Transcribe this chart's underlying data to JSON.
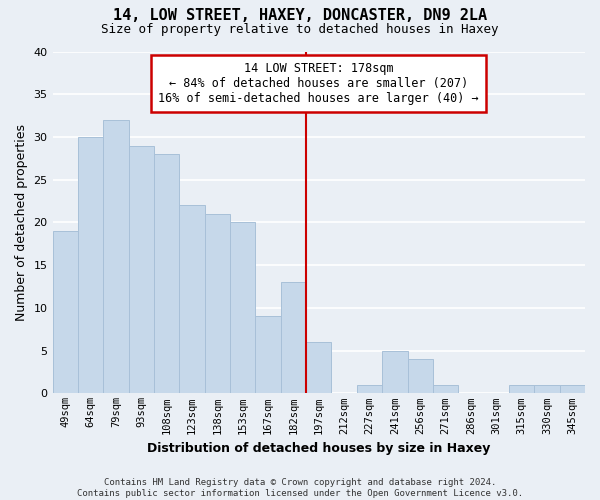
{
  "title": "14, LOW STREET, HAXEY, DONCASTER, DN9 2LA",
  "subtitle": "Size of property relative to detached houses in Haxey",
  "xlabel": "Distribution of detached houses by size in Haxey",
  "ylabel": "Number of detached properties",
  "footer_line1": "Contains HM Land Registry data © Crown copyright and database right 2024.",
  "footer_line2": "Contains public sector information licensed under the Open Government Licence v3.0.",
  "bar_labels": [
    "49sqm",
    "64sqm",
    "79sqm",
    "93sqm",
    "108sqm",
    "123sqm",
    "138sqm",
    "153sqm",
    "167sqm",
    "182sqm",
    "197sqm",
    "212sqm",
    "227sqm",
    "241sqm",
    "256sqm",
    "271sqm",
    "286sqm",
    "301sqm",
    "315sqm",
    "330sqm",
    "345sqm"
  ],
  "bar_values": [
    19,
    30,
    32,
    29,
    28,
    22,
    21,
    20,
    9,
    13,
    6,
    0,
    1,
    5,
    4,
    1,
    0,
    0,
    1,
    1,
    1
  ],
  "bar_color": "#c6d8ea",
  "bar_edge_color": "#a8c0d8",
  "property_line_index": 9.5,
  "annotation_text_line1": "14 LOW STREET: 178sqm",
  "annotation_text_line2": "← 84% of detached houses are smaller (207)",
  "annotation_text_line3": "16% of semi-detached houses are larger (40) →",
  "annotation_box_color": "#ffffff",
  "annotation_box_edge_color": "#cc0000",
  "line_color": "#cc0000",
  "ylim": [
    0,
    40
  ],
  "yticks": [
    0,
    5,
    10,
    15,
    20,
    25,
    30,
    35,
    40
  ],
  "background_color": "#eaeff5",
  "grid_color": "#ffffff",
  "title_fontsize": 11,
  "subtitle_fontsize": 9,
  "axis_label_fontsize": 9,
  "tick_fontsize": 8,
  "annotation_fontsize": 8.5,
  "footer_fontsize": 6.5
}
